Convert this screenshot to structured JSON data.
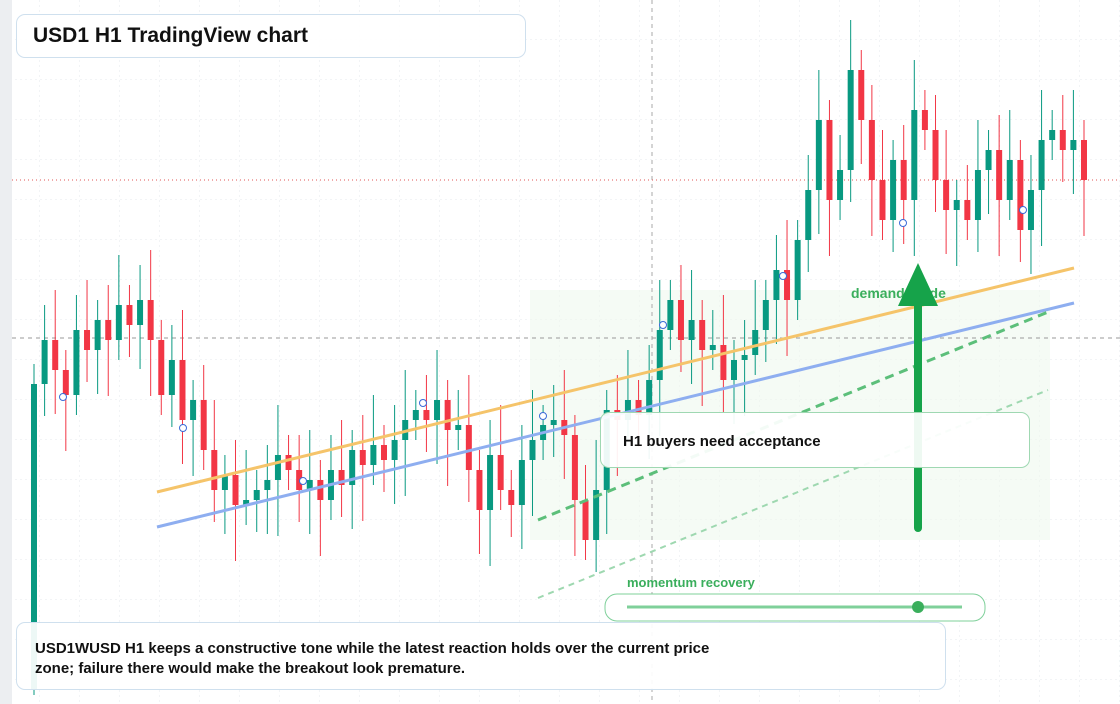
{
  "chart_data": {
    "type": "candlestick",
    "title": "USD1 H1 TradingView chart",
    "up_color": "#089981",
    "down_color": "#f23645",
    "ylim": [
      -4,
      700
    ],
    "open": [
      10,
      316,
      360,
      330,
      305,
      370,
      350,
      380,
      360,
      395,
      375,
      400,
      360,
      305,
      340,
      280,
      300,
      250,
      210,
      225,
      195,
      200,
      210,
      220,
      245,
      230,
      210,
      220,
      200,
      230,
      215,
      250,
      235,
      255,
      240,
      260,
      280,
      290,
      280,
      300,
      270,
      275,
      230,
      190,
      245,
      210,
      195,
      240,
      260,
      275,
      280,
      265,
      200,
      160,
      210,
      290,
      280,
      300,
      285,
      320,
      370,
      400,
      360,
      380,
      350,
      355,
      320,
      340,
      345,
      370,
      400,
      430,
      400,
      460,
      510,
      580,
      500,
      530,
      630,
      580,
      520,
      480,
      540,
      500,
      590,
      570,
      520,
      490,
      500,
      480,
      530,
      550,
      500,
      540,
      470,
      510,
      560,
      570,
      550,
      560
    ],
    "high": [
      336,
      395,
      410,
      350,
      405,
      420,
      400,
      415,
      445,
      415,
      435,
      450,
      380,
      375,
      390,
      320,
      335,
      300,
      245,
      260,
      250,
      230,
      255,
      295,
      265,
      265,
      270,
      240,
      265,
      280,
      270,
      285,
      305,
      275,
      295,
      330,
      310,
      325,
      350,
      320,
      310,
      325,
      250,
      280,
      295,
      230,
      275,
      310,
      295,
      315,
      330,
      285,
      235,
      260,
      310,
      325,
      350,
      320,
      355,
      420,
      420,
      435,
      430,
      400,
      390,
      405,
      360,
      380,
      420,
      420,
      465,
      480,
      480,
      545,
      630,
      600,
      565,
      680,
      650,
      615,
      570,
      560,
      575,
      640,
      610,
      605,
      570,
      520,
      535,
      580,
      570,
      585,
      590,
      560,
      545,
      610,
      590,
      605,
      610,
      580
    ],
    "low": [
      5,
      284,
      286,
      249,
      285,
      318,
      306,
      304,
      340,
      343,
      331,
      304,
      285,
      273,
      236,
      224,
      230,
      178,
      166,
      139,
      175,
      168,
      166,
      164,
      210,
      178,
      166,
      144,
      180,
      183,
      171,
      179,
      215,
      208,
      196,
      204,
      260,
      248,
      236,
      214,
      250,
      198,
      146,
      134,
      190,
      163,
      151,
      184,
      240,
      243,
      221,
      144,
      140,
      128,
      166,
      224,
      260,
      253,
      241,
      264,
      350,
      328,
      316,
      294,
      330,
      288,
      276,
      284,
      325,
      338,
      356,
      344,
      380,
      428,
      466,
      444,
      480,
      498,
      536,
      464,
      460,
      448,
      456,
      444,
      550,
      488,
      446,
      434,
      460,
      448,
      486,
      444,
      480,
      438,
      426,
      454,
      540,
      518,
      506,
      464
    ],
    "close": [
      316,
      360,
      330,
      305,
      370,
      350,
      380,
      360,
      395,
      375,
      400,
      360,
      305,
      340,
      280,
      300,
      250,
      210,
      225,
      195,
      200,
      210,
      220,
      245,
      230,
      210,
      220,
      200,
      230,
      215,
      250,
      235,
      255,
      240,
      260,
      280,
      290,
      280,
      300,
      270,
      275,
      230,
      190,
      245,
      210,
      195,
      240,
      260,
      275,
      280,
      265,
      200,
      160,
      210,
      290,
      280,
      300,
      285,
      320,
      370,
      400,
      360,
      380,
      350,
      355,
      320,
      340,
      345,
      370,
      400,
      430,
      400,
      460,
      510,
      580,
      500,
      530,
      630,
      580,
      520,
      480,
      540,
      500,
      590,
      570,
      520,
      490,
      500,
      480,
      530,
      550,
      500,
      540,
      470,
      510,
      560,
      570,
      550,
      560,
      520
    ],
    "annotations": {
      "zone": "H1 buyers need acceptance",
      "guide": "demand guide",
      "momentum": "momentum recovery"
    },
    "note": "USD1WUSD H1 keeps a constructive tone while the latest reaction holds over the current price zone; failure there would make the breakout look premature."
  }
}
